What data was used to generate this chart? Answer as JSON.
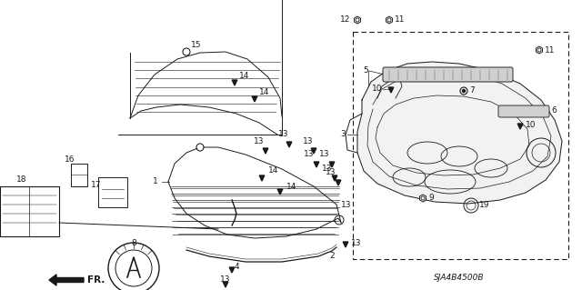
{
  "bg_color": "#ffffff",
  "dc": "#1a1a1a",
  "diagram_code": "SJA4B4500B",
  "fs": 6.5,
  "lw": 0.7,
  "figw": 6.4,
  "figh": 3.19,
  "dpi": 100
}
